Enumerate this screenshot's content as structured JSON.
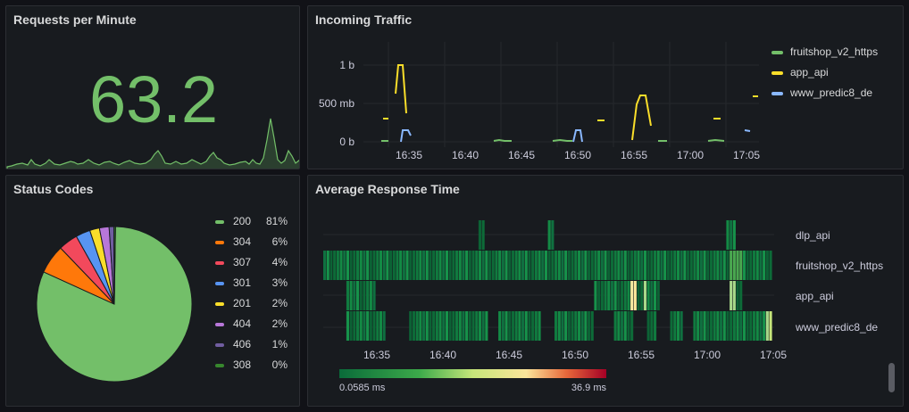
{
  "panels": {
    "requests": {
      "title": "Requests per Minute",
      "value": "63.2",
      "color": "#73bf69"
    },
    "traffic": {
      "title": "Incoming Traffic",
      "y_ticks": [
        "1 b",
        "500 mb",
        "0 b"
      ],
      "x_ticks": [
        "16:35",
        "16:40",
        "16:45",
        "16:50",
        "16:55",
        "17:00",
        "17:05"
      ],
      "legend": [
        {
          "label": "fruitshop_v2_https",
          "color": "#73bf69"
        },
        {
          "label": "app_api",
          "color": "#fade2a"
        },
        {
          "label": "www_predic8_de",
          "color": "#8ab8ff"
        }
      ]
    },
    "status": {
      "title": "Status Codes",
      "legend": [
        {
          "code": "200",
          "pct": "81%",
          "color": "#73bf69"
        },
        {
          "code": "304",
          "pct": "6%",
          "color": "#ff780a"
        },
        {
          "code": "307",
          "pct": "4%",
          "color": "#f2495c"
        },
        {
          "code": "301",
          "pct": "3%",
          "color": "#5794f2"
        },
        {
          "code": "201",
          "pct": "2%",
          "color": "#fade2a"
        },
        {
          "code": "404",
          "pct": "2%",
          "color": "#b877d9"
        },
        {
          "code": "406",
          "pct": "1%",
          "color": "#705da0"
        },
        {
          "code": "308",
          "pct": "0%",
          "color": "#37872d"
        }
      ]
    },
    "response": {
      "title": "Average Response Time",
      "rows": [
        "dlp_api",
        "fruitshop_v2_https",
        "app_api",
        "www_predic8_de"
      ],
      "x_ticks": [
        "16:35",
        "16:40",
        "16:45",
        "16:50",
        "16:55",
        "17:00",
        "17:05"
      ],
      "scale_min": "0.0585 ms",
      "scale_max": "36.9 ms"
    }
  },
  "chart_data": [
    {
      "type": "pie",
      "title": "Status Codes",
      "categories": [
        "200",
        "304",
        "307",
        "301",
        "201",
        "404",
        "406",
        "308"
      ],
      "values": [
        81,
        6,
        4,
        3,
        2,
        2,
        1,
        0.3
      ]
    },
    {
      "type": "line",
      "title": "Incoming Traffic",
      "ylabel": "",
      "series": [
        {
          "name": "fruitshop_v2_https",
          "values": []
        },
        {
          "name": "app_api",
          "values": []
        },
        {
          "name": "www_predic8_de",
          "values": []
        }
      ]
    },
    {
      "type": "heatmap",
      "title": "Average Response Time",
      "categories": [
        "dlp_api",
        "fruitshop_v2_https",
        "app_api",
        "www_predic8_de"
      ],
      "range": [
        "0.0585 ms",
        "36.9 ms"
      ]
    }
  ]
}
